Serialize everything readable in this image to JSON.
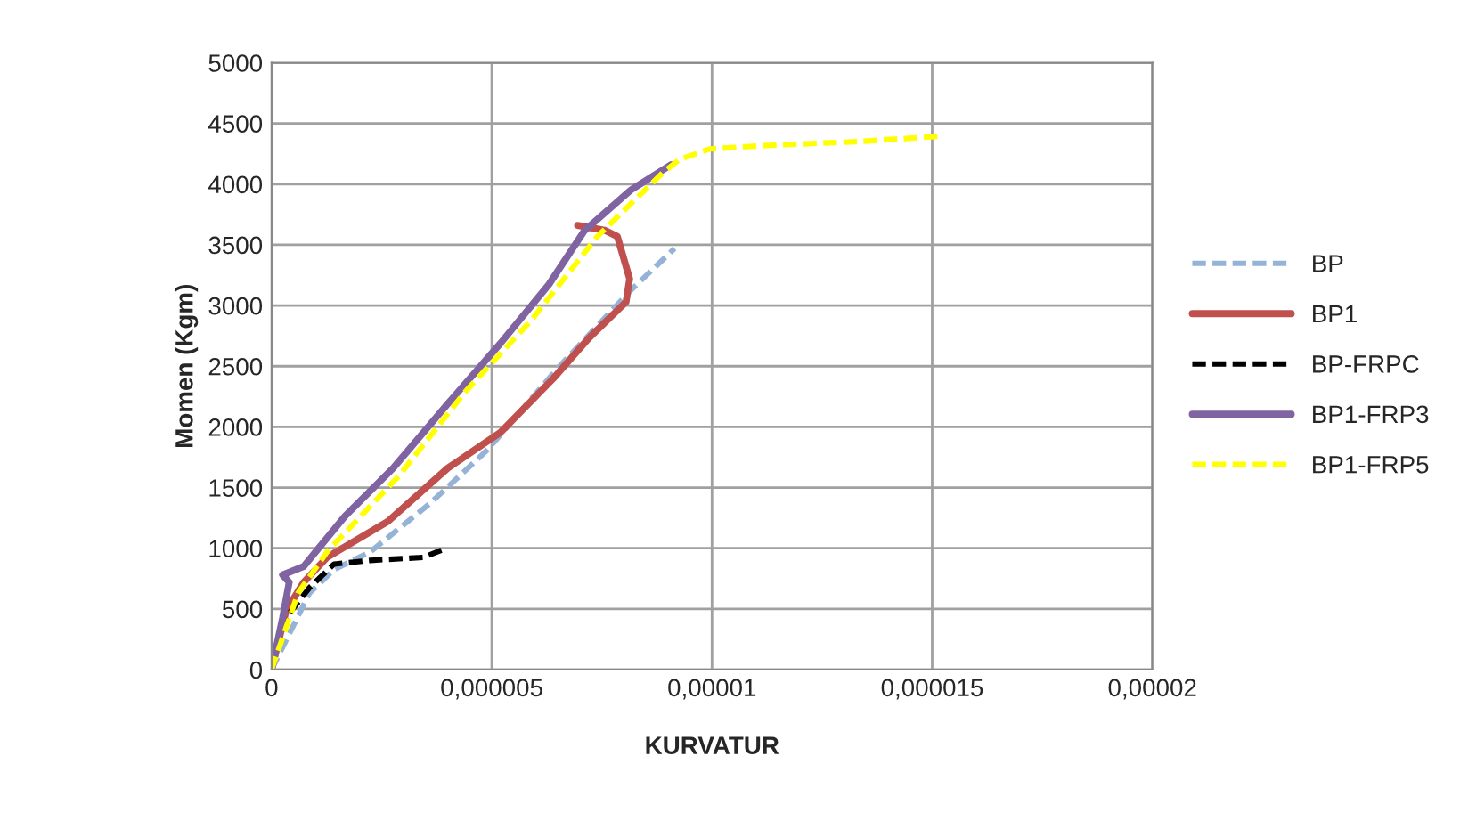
{
  "chart_data": {
    "type": "line",
    "xlabel": "KURVATUR",
    "ylabel": "Momen (Kgm)",
    "xlim": [
      0,
      2e-05
    ],
    "ylim": [
      0,
      5000
    ],
    "xticks": [
      0,
      {
        "value": 5e-06,
        "label": "0,000005"
      },
      {
        "value": 1e-05,
        "label": "0,00001"
      },
      {
        "value": 1.5e-05,
        "label": "0,000015"
      },
      {
        "value": 2e-05,
        "label": "0,00002"
      }
    ],
    "yticks": [
      0,
      500,
      1000,
      1500,
      2000,
      2500,
      3000,
      3500,
      4000,
      4500,
      5000
    ],
    "grid": true,
    "legend": "right",
    "marker": "none",
    "series": [
      {
        "name": "BP",
        "color": "#95b3d7",
        "line_style": "dashed",
        "x": [
          0,
          8.6e-07,
          1.42e-06,
          2.24e-06,
          3.6e-06,
          4.9e-06,
          6.5e-06,
          8.17e-06,
          9.15e-06
        ],
        "values": [
          0,
          630,
          825,
          970,
          1370,
          1810,
          2485,
          3130,
          3470
        ]
      },
      {
        "name": "BP1",
        "color": "#c0504d",
        "line_style": "solid",
        "x": [
          0,
          3.3e-07,
          7.3e-07,
          1.26e-06,
          2.64e-06,
          4e-06,
          5.2e-06,
          6.4e-06,
          7.2e-06,
          8.05e-06,
          8.13e-06,
          7.85e-06,
          7.56e-06,
          6.95e-06
        ],
        "values": [
          0,
          485,
          720,
          926,
          1220,
          1660,
          1955,
          2400,
          2730,
          3030,
          3220,
          3570,
          3620,
          3660
        ]
      },
      {
        "name": "BP-FRPC",
        "color": "#000000",
        "line_style": "dashed",
        "x": [
          0,
          3.3e-07,
          8.6e-07,
          1.42e-06,
          2.24e-06,
          3.45e-06,
          3.86e-06
        ],
        "values": [
          0,
          430,
          675,
          870,
          900,
          925,
          985
        ]
      },
      {
        "name": "BP1-FRP3",
        "color": "#8064a2",
        "line_style": "solid",
        "x": [
          0,
          2.5e-07,
          4e-07,
          2.5e-07,
          7.3e-07,
          1e-06,
          1.67e-06,
          2.76e-06,
          4e-06,
          5.2e-06,
          6.3e-06,
          7.1e-06,
          8.17e-06,
          9.07e-06
        ],
        "values": [
          0,
          425,
          720,
          780,
          850,
          970,
          1265,
          1660,
          2190,
          2690,
          3175,
          3615,
          3955,
          4160
        ]
      },
      {
        "name": "BP1-FRP5",
        "color": "#ffff00",
        "line_style": "dashed",
        "x": [
          0,
          6e-07,
          1.26e-06,
          2.9e-06,
          4.4e-06,
          5.9e-06,
          7.4e-06,
          8.9e-06,
          9.27e-06,
          9.95e-06,
          1.13e-05,
          1.33e-05,
          1.52e-05
        ],
        "values": [
          0,
          630,
          970,
          1600,
          2290,
          2880,
          3570,
          4100,
          4205,
          4290,
          4320,
          4350,
          4395
        ]
      }
    ]
  }
}
